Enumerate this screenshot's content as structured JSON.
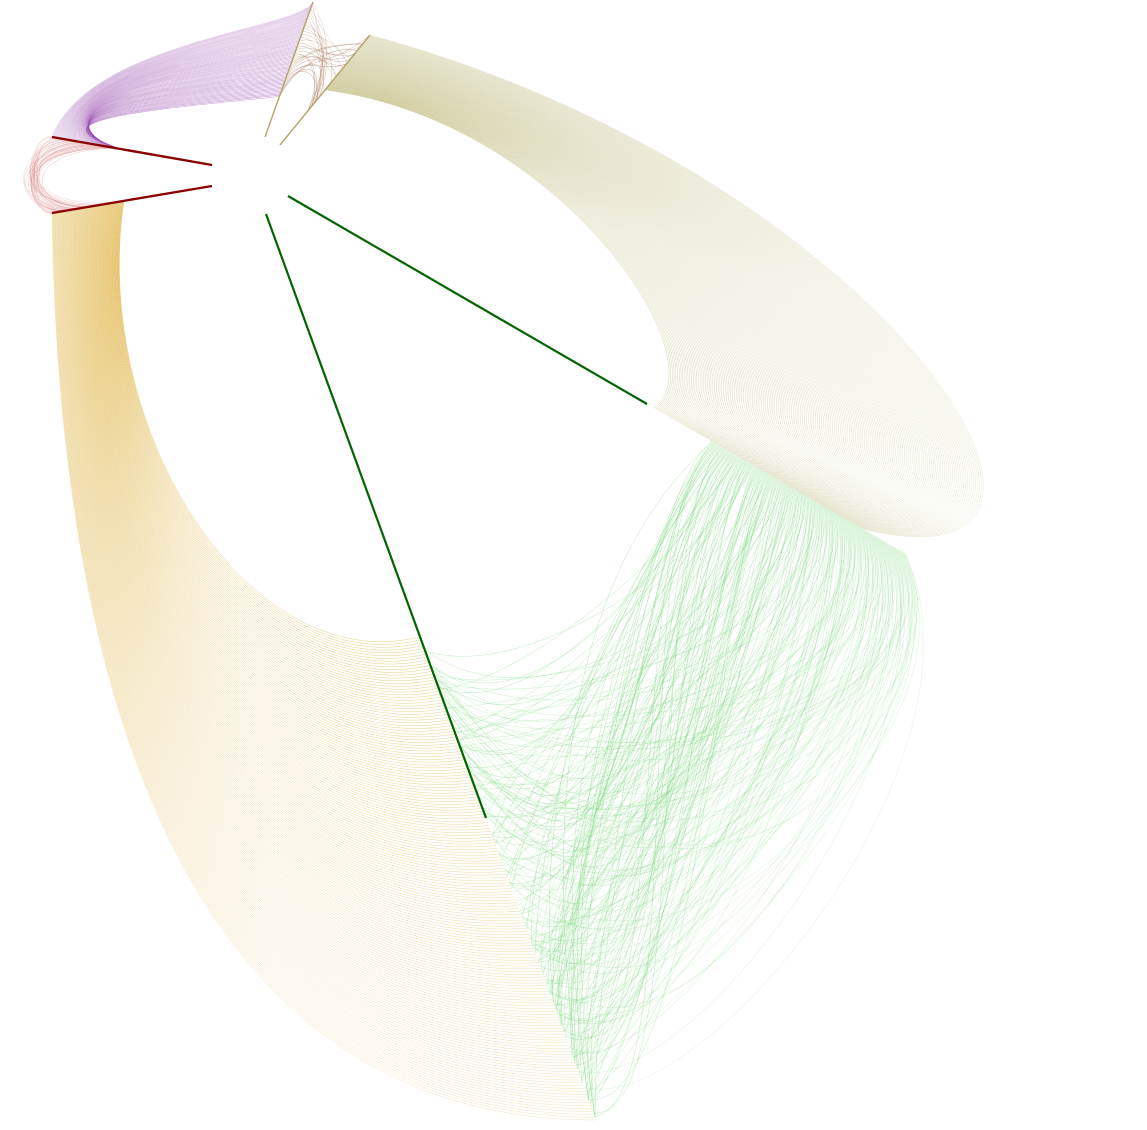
{
  "diagram": {
    "type": "hive-plot",
    "background": "#ffffff",
    "axes": [
      {
        "id": "axis-red-upper",
        "color": "#8b0000"
      },
      {
        "id": "axis-red-lower",
        "color": "#8b0000"
      },
      {
        "id": "axis-tan-left",
        "color": "#b5a36a"
      },
      {
        "id": "axis-tan-right",
        "color": "#b5a36a"
      },
      {
        "id": "axis-green-right",
        "color": "#006400"
      },
      {
        "id": "axis-green-long",
        "color": "#006400"
      }
    ],
    "edge_bundles": [
      {
        "id": "purple-bundle",
        "color": "#9b4fb0",
        "count": 70
      },
      {
        "id": "pink-bundle",
        "color": "#d98a8a",
        "count": 40
      },
      {
        "id": "brown-bundle",
        "color": "#a0674b",
        "count": 30
      },
      {
        "id": "olive-bundle",
        "color": "#b3ad64",
        "count": 170
      },
      {
        "id": "gold-bundle",
        "color": "#d9a520",
        "count": 170
      },
      {
        "id": "green-bundle",
        "color": "#6fd36f",
        "count": 260
      }
    ]
  }
}
